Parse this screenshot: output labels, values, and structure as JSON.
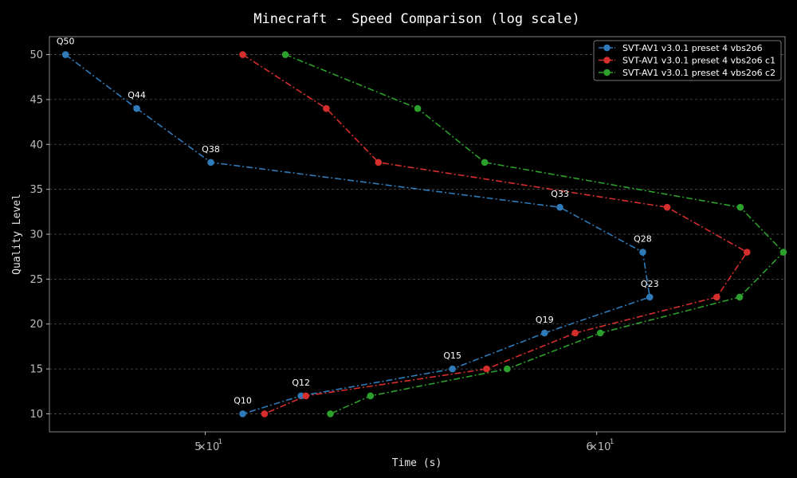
{
  "chart_data": {
    "type": "line",
    "title": "Minecraft - Speed Comparison (log scale)",
    "xlabel": "Time (s)",
    "ylabel": "Quality Level",
    "xscale": "log",
    "xlim": [
      46.5,
      65.5
    ],
    "ylim": [
      8,
      52
    ],
    "xticks": [
      {
        "value": 50,
        "base": "5",
        "exp": "1"
      },
      {
        "value": 60,
        "base": "6",
        "exp": "1"
      }
    ],
    "yticks": [
      10,
      15,
      20,
      25,
      30,
      35,
      40,
      45,
      50
    ],
    "grid": true,
    "legend_position": "top-right",
    "series": [
      {
        "name": "SVT-AV1 v3.0.1 preset 4 vbs2o6",
        "color": "#2f7ab9",
        "x": [
          46.85,
          48.43,
          50.13,
          58.98,
          61.3,
          61.5,
          58.56,
          56.1,
          52.28,
          50.88
        ],
        "y": [
          50,
          44,
          38,
          33,
          28,
          23,
          19,
          15,
          12,
          10
        ]
      },
      {
        "name": "SVT-AV1 v3.0.1 preset 4 vbs2o6 c1",
        "color": "#d62d2d",
        "x": [
          50.88,
          52.9,
          54.2,
          62.0,
          64.35,
          63.45,
          59.4,
          57.0,
          52.4,
          51.4
        ],
        "y": [
          50,
          44,
          38,
          33,
          28,
          23,
          19,
          15,
          12,
          10
        ]
      },
      {
        "name": "SVT-AV1 v3.0.1 preset 4 vbs2o6 c2",
        "color": "#2ca02c",
        "x": [
          51.9,
          55.2,
          56.95,
          64.15,
          65.45,
          64.13,
          60.1,
          57.55,
          54.0,
          53.0
        ],
        "y": [
          50,
          44,
          38,
          33,
          28,
          23,
          19,
          15,
          12,
          10
        ]
      }
    ],
    "annotations": [
      {
        "text": "Q50",
        "series": 0,
        "index": 0
      },
      {
        "text": "Q44",
        "series": 0,
        "index": 1
      },
      {
        "text": "Q38",
        "series": 0,
        "index": 2
      },
      {
        "text": "Q33",
        "series": 0,
        "index": 3
      },
      {
        "text": "Q28",
        "series": 0,
        "index": 4
      },
      {
        "text": "Q23",
        "series": 0,
        "index": 5
      },
      {
        "text": "Q19",
        "series": 0,
        "index": 6
      },
      {
        "text": "Q15",
        "series": 0,
        "index": 7
      },
      {
        "text": "Q12",
        "series": 0,
        "index": 8
      },
      {
        "text": "Q10",
        "series": 0,
        "index": 9
      }
    ]
  }
}
